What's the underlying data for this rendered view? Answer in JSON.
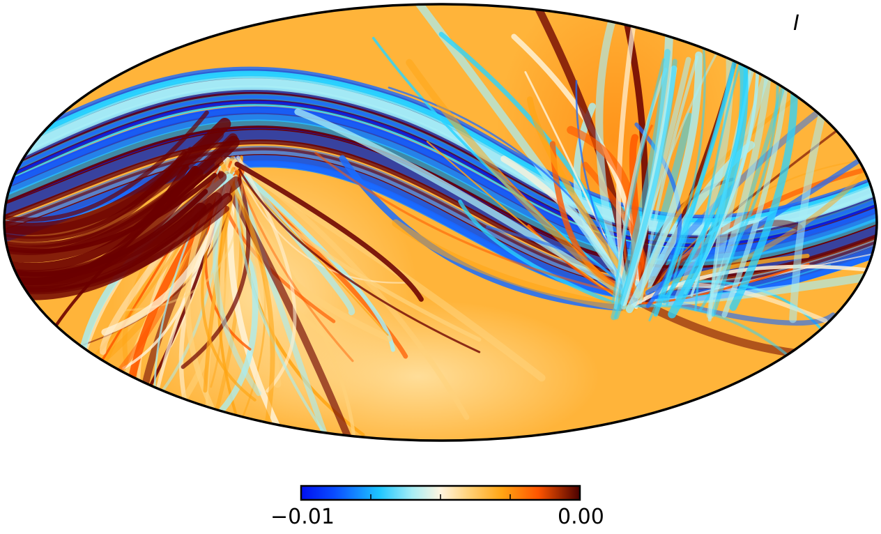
{
  "map": {
    "projection": "mollweide",
    "stokes_label": "I"
  },
  "colorbar": {
    "min_label": "−0.01",
    "max_label": "0.00",
    "colors": {
      "deep_blue": "#0021f5",
      "blue": "#1a6cff",
      "cyan": "#2ad4ff",
      "light_cyan": "#a8eef5",
      "cream": "#fff3d9",
      "light_orange": "#ffd27a",
      "orange": "#ffa514",
      "red_orange": "#ff5a00",
      "dark_red": "#6b0000"
    }
  }
}
